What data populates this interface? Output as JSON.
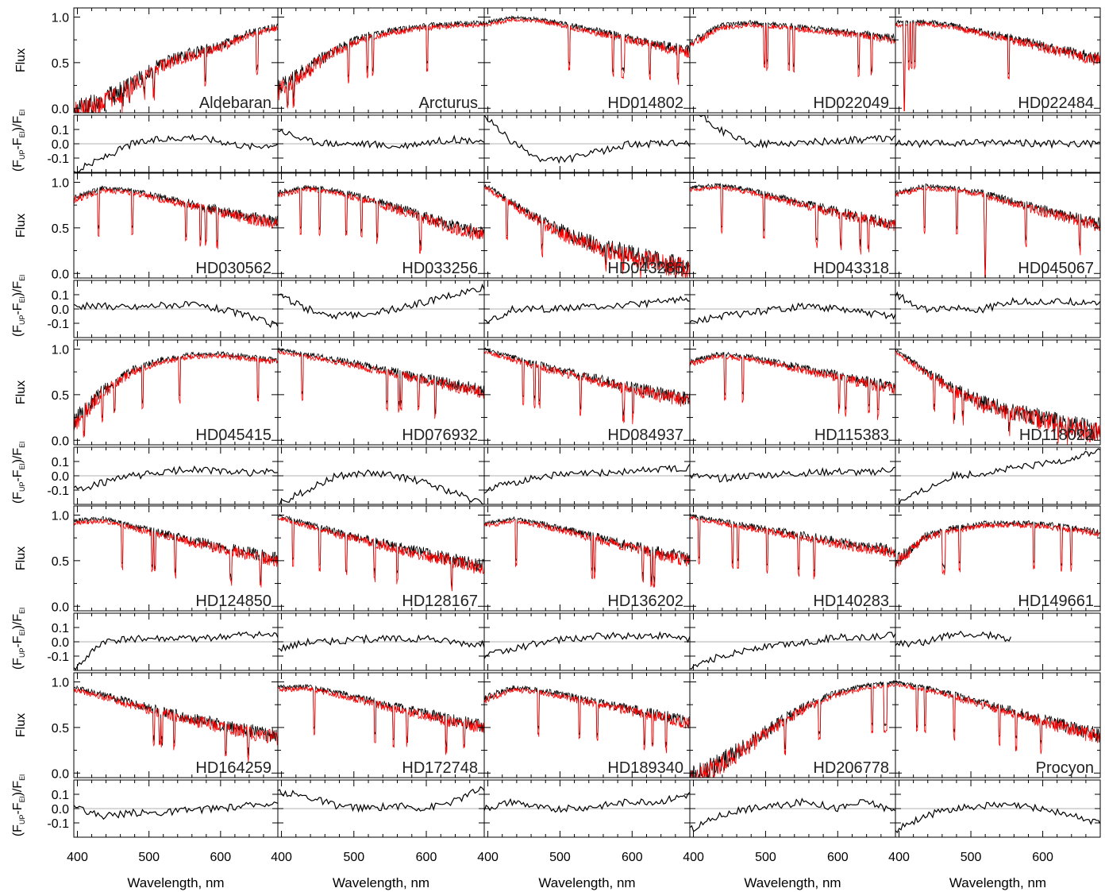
{
  "figure": {
    "ylabel_flux": "Flux",
    "ylabel_resid": {
      "prefix": "(F",
      "sub1": "UP",
      "mid": "-F",
      "sub2": "El",
      "close": ")/F",
      "sub3": "El"
    },
    "xlabel": "Wavelength, nm"
  },
  "axes": {
    "flux_ticks": [
      "1.0",
      "0.5",
      "0.0"
    ],
    "resid_ticks": [
      "0.1",
      "0.0",
      "-0.1"
    ],
    "x_ticks": [
      "400",
      "500",
      "600"
    ],
    "xlim": [
      395,
      680
    ],
    "flux_ylim": [
      -0.05,
      1.1
    ],
    "resid_ylim": [
      -0.2,
      0.2
    ]
  },
  "colors": {
    "observed": "#000000",
    "model": "#ff0000",
    "zero_line": "#999999"
  },
  "chart_data": {
    "type": "line",
    "grid": {
      "rows": 5,
      "cols": 5
    },
    "x_unit": "nm",
    "stars": [
      {
        "name": "Aldebaran",
        "shape": [
          0.08,
          0.18,
          0.35,
          0.55,
          0.65,
          0.72,
          0.85,
          0.92
        ],
        "resid": [
          -0.2,
          -0.1,
          0.0,
          0.03,
          0.05,
          0.02,
          -0.02,
          0.0
        ]
      },
      {
        "name": "Arcturus",
        "shape": [
          0.3,
          0.5,
          0.7,
          0.82,
          0.88,
          0.92,
          0.94,
          0.95
        ],
        "resid": [
          0.1,
          0.02,
          0.0,
          0.0,
          -0.02,
          0.01,
          0.03,
          0.02
        ]
      },
      {
        "name": "HD014802",
        "shape": [
          0.95,
          1.0,
          0.98,
          0.92,
          0.86,
          0.8,
          0.73,
          0.68
        ],
        "resid": [
          0.2,
          0.0,
          -0.12,
          -0.1,
          -0.05,
          0.0,
          0.0,
          0.0
        ]
      },
      {
        "name": "HD022049",
        "shape": [
          0.75,
          0.92,
          0.95,
          0.93,
          0.9,
          0.87,
          0.84,
          0.8
        ],
        "resid": [
          0.25,
          0.1,
          0.0,
          0.0,
          0.01,
          0.02,
          0.03,
          0.04
        ]
      },
      {
        "name": "HD022484",
        "shape": [
          0.95,
          0.96,
          0.92,
          0.86,
          0.8,
          0.73,
          0.66,
          0.6
        ],
        "resid": [
          0.0,
          0.0,
          0.0,
          0.01,
          0.01,
          0.0,
          0.0,
          0.0
        ]
      },
      {
        "name": "HD030562",
        "shape": [
          0.85,
          0.95,
          0.92,
          0.86,
          0.8,
          0.73,
          0.67,
          0.62
        ],
        "resid": [
          0.02,
          0.02,
          0.01,
          0.03,
          0.03,
          0.0,
          -0.05,
          -0.12
        ]
      },
      {
        "name": "HD033256",
        "shape": [
          0.9,
          0.96,
          0.92,
          0.85,
          0.76,
          0.67,
          0.58,
          0.5
        ],
        "resid": [
          0.1,
          0.0,
          -0.05,
          -0.03,
          0.0,
          0.05,
          0.1,
          0.15
        ]
      },
      {
        "name": "HD043285",
        "shape": [
          0.98,
          0.8,
          0.62,
          0.48,
          0.38,
          0.3,
          0.23,
          0.17
        ],
        "resid": [
          -0.1,
          0.0,
          0.0,
          0.01,
          0.02,
          0.03,
          0.05,
          0.08
        ]
      },
      {
        "name": "HD043318",
        "shape": [
          0.95,
          0.98,
          0.93,
          0.86,
          0.79,
          0.72,
          0.66,
          0.6
        ],
        "resid": [
          -0.1,
          -0.05,
          -0.03,
          0.0,
          0.02,
          0.0,
          -0.03,
          -0.05
        ]
      },
      {
        "name": "HD045067",
        "shape": [
          0.9,
          0.97,
          0.95,
          0.9,
          0.82,
          0.74,
          0.67,
          0.6
        ],
        "resid": [
          0.1,
          0.0,
          0.0,
          0.0,
          0.05,
          0.05,
          0.05,
          0.05
        ]
      },
      {
        "name": "HD045415",
        "shape": [
          0.3,
          0.6,
          0.8,
          0.9,
          0.95,
          0.96,
          0.93,
          0.9
        ],
        "resid": [
          -0.1,
          -0.05,
          0.0,
          0.02,
          0.05,
          0.03,
          0.02,
          0.03
        ]
      },
      {
        "name": "HD076932",
        "shape": [
          1.0,
          0.95,
          0.9,
          0.84,
          0.78,
          0.72,
          0.66,
          0.6
        ],
        "resid": [
          -0.2,
          -0.1,
          0.0,
          0.02,
          0.0,
          -0.05,
          -0.12,
          -0.2
        ]
      },
      {
        "name": "HD084937",
        "shape": [
          1.0,
          0.92,
          0.84,
          0.77,
          0.7,
          0.63,
          0.57,
          0.52
        ],
        "resid": [
          -0.1,
          -0.05,
          0.0,
          0.01,
          0.02,
          0.03,
          0.05,
          0.06
        ]
      },
      {
        "name": "HD115383",
        "shape": [
          0.88,
          0.96,
          0.93,
          0.87,
          0.81,
          0.75,
          0.69,
          0.63
        ],
        "resid": [
          0.0,
          -0.02,
          0.0,
          0.01,
          0.02,
          0.03,
          0.02,
          0.05
        ]
      },
      {
        "name": "HD118022",
        "shape": [
          1.0,
          0.8,
          0.62,
          0.48,
          0.4,
          0.33,
          0.26,
          0.2
        ],
        "resid": [
          -0.2,
          -0.1,
          0.0,
          0.02,
          0.05,
          0.08,
          0.12,
          0.18
        ]
      },
      {
        "name": "HD124850",
        "shape": [
          0.95,
          0.97,
          0.9,
          0.83,
          0.76,
          0.7,
          0.64,
          0.58
        ],
        "resid": [
          -0.2,
          0.0,
          0.02,
          0.02,
          0.02,
          0.03,
          0.05,
          0.04
        ]
      },
      {
        "name": "HD128167",
        "shape": [
          1.0,
          0.92,
          0.84,
          0.77,
          0.7,
          0.63,
          0.57,
          0.5
        ],
        "resid": [
          -0.05,
          0.0,
          0.0,
          0.02,
          0.02,
          0.02,
          0.0,
          -0.02
        ]
      },
      {
        "name": "HD136202",
        "shape": [
          0.92,
          0.97,
          0.92,
          0.85,
          0.78,
          0.71,
          0.64,
          0.58
        ],
        "resid": [
          -0.1,
          -0.05,
          0.0,
          0.02,
          0.04,
          0.04,
          0.04,
          0.02
        ]
      },
      {
        "name": "HD140283",
        "shape": [
          1.0,
          0.95,
          0.9,
          0.85,
          0.8,
          0.75,
          0.7,
          0.66
        ],
        "resid": [
          -0.2,
          -0.1,
          -0.05,
          -0.02,
          0.0,
          0.03,
          0.03,
          0.05
        ]
      },
      {
        "name": "HD149661",
        "shape": [
          0.55,
          0.8,
          0.88,
          0.92,
          0.93,
          0.92,
          0.88,
          0.84
        ],
        "resid": [
          -0.02,
          0.0,
          0.05,
          0.05,
          0.02,
          null,
          null,
          null
        ]
      },
      {
        "name": "HD164259",
        "shape": [
          0.95,
          0.88,
          0.8,
          0.72,
          0.65,
          0.59,
          0.53,
          0.48
        ],
        "resid": [
          0.0,
          -0.05,
          -0.03,
          -0.03,
          -0.01,
          0.0,
          0.02,
          0.05
        ]
      },
      {
        "name": "HD172748",
        "shape": [
          0.95,
          0.96,
          0.9,
          0.83,
          0.76,
          0.7,
          0.63,
          0.57
        ],
        "resid": [
          0.12,
          0.08,
          0.02,
          0.0,
          0.02,
          0.0,
          0.05,
          0.15
        ]
      },
      {
        "name": "HD189340",
        "shape": [
          0.85,
          0.95,
          0.92,
          0.86,
          0.8,
          0.74,
          0.68,
          0.62
        ],
        "resid": [
          0.0,
          0.05,
          0.0,
          0.0,
          0.02,
          0.05,
          0.05,
          0.1
        ]
      },
      {
        "name": "HD206778",
        "shape": [
          0.05,
          0.2,
          0.4,
          0.6,
          0.78,
          0.9,
          0.97,
          1.0
        ],
        "resid": [
          -0.15,
          -0.05,
          0.0,
          0.02,
          0.05,
          0.0,
          0.05,
          -0.02
        ]
      },
      {
        "name": "Procyon",
        "shape": [
          1.0,
          0.95,
          0.88,
          0.8,
          0.72,
          0.64,
          0.56,
          0.48
        ],
        "resid": [
          -0.15,
          -0.05,
          0.0,
          0.02,
          0.02,
          0.0,
          -0.05,
          -0.1
        ]
      }
    ]
  }
}
